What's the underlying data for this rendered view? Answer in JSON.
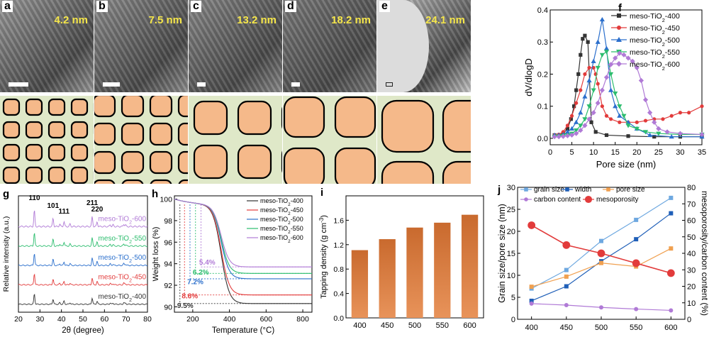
{
  "panels": {
    "tem": [
      {
        "label": "a",
        "scale": "4.2 nm",
        "tone": "#9a9a9a"
      },
      {
        "label": "b",
        "scale": "7.5 nm",
        "tone": "#8e8e8e"
      },
      {
        "label": "c",
        "scale": "13.2 nm",
        "tone": "#8a8a8a"
      },
      {
        "label": "d",
        "scale": "18.2 nm",
        "tone": "#7c7c7c"
      },
      {
        "label": "e",
        "scale": "24.1 nm",
        "tone": "#c8c8c8"
      }
    ],
    "schematic_colors": {
      "fill": "#f5b98a",
      "bg": "#dfe8c8",
      "edge": "#000000"
    },
    "f": "f",
    "g": "g",
    "h": "h",
    "i": "i",
    "j": "j"
  },
  "chart_data": [
    {
      "id": "f",
      "type": "line",
      "xlabel": "Pore size (nm)",
      "ylabel": "dV/dlogD",
      "xlim": [
        0,
        35
      ],
      "ylim": [
        -0.02,
        0.4
      ],
      "xticks": [
        0,
        5,
        10,
        15,
        20,
        25,
        30,
        35
      ],
      "yticks": [
        0.0,
        0.1,
        0.2,
        0.3,
        0.4
      ],
      "xtick_labels": [
        "0",
        "5",
        "10",
        "15",
        "20",
        "25",
        "30",
        "35"
      ],
      "ytick_labels": [
        "0.0",
        "0.1",
        "0.2",
        "0.3",
        "0.4"
      ],
      "legend_position": "top-right",
      "series": [
        {
          "name": "meso-TiO2-400",
          "legend_main": "meso-TiO",
          "legend_sub": "2",
          "legend_tail": "-400",
          "color": "#333333",
          "marker": "square",
          "points": [
            [
              1,
              0.01
            ],
            [
              2,
              0.01
            ],
            [
              3,
              0.015
            ],
            [
              4,
              0.03
            ],
            [
              4.8,
              0.06
            ],
            [
              5.5,
              0.1
            ],
            [
              6,
              0.15
            ],
            [
              6.5,
              0.2
            ],
            [
              7,
              0.26
            ],
            [
              7.5,
              0.31
            ],
            [
              8,
              0.32
            ],
            [
              8.7,
              0.3
            ],
            [
              9.5,
              0.05
            ],
            [
              10.5,
              0.02
            ],
            [
              13,
              0.01
            ],
            [
              18,
              0.007
            ],
            [
              24,
              0.005
            ],
            [
              30,
              0.005
            ],
            [
              35,
              0.005
            ]
          ]
        },
        {
          "name": "meso-TiO2-450",
          "legend_main": "meso-TiO",
          "legend_sub": "2",
          "legend_tail": "-450",
          "color": "#e23b3b",
          "marker": "circle",
          "points": [
            [
              1,
              0.01
            ],
            [
              2,
              0.012
            ],
            [
              3,
              0.02
            ],
            [
              4,
              0.04
            ],
            [
              5,
              0.07
            ],
            [
              6,
              0.11
            ],
            [
              7,
              0.15
            ],
            [
              8,
              0.2
            ],
            [
              9,
              0.22
            ],
            [
              10,
              0.22
            ],
            [
              10.5,
              0.2
            ],
            [
              11,
              0.17
            ],
            [
              12,
              0.1
            ],
            [
              13,
              0.07
            ],
            [
              14,
              0.06
            ],
            [
              16,
              0.05
            ],
            [
              18,
              0.05
            ],
            [
              20,
              0.05
            ],
            [
              22,
              0.055
            ],
            [
              24,
              0.06
            ],
            [
              26,
              0.06
            ],
            [
              28,
              0.07
            ],
            [
              30,
              0.08
            ],
            [
              32,
              0.08
            ],
            [
              35,
              0.1
            ]
          ]
        },
        {
          "name": "meso-TiO2-500",
          "legend_main": "meso-TiO",
          "legend_sub": "2",
          "legend_tail": "-500",
          "color": "#2b6fcc",
          "marker": "triangle",
          "points": [
            [
              1,
              0.01
            ],
            [
              2,
              0.01
            ],
            [
              3,
              0.012
            ],
            [
              4,
              0.02
            ],
            [
              5,
              0.03
            ],
            [
              6,
              0.05
            ],
            [
              7,
              0.08
            ],
            [
              8,
              0.13
            ],
            [
              9,
              0.18
            ],
            [
              10,
              0.24
            ],
            [
              11,
              0.3
            ],
            [
              12,
              0.37
            ],
            [
              13,
              0.28
            ],
            [
              14,
              0.15
            ],
            [
              15,
              0.1
            ],
            [
              16,
              0.07
            ],
            [
              18,
              0.05
            ],
            [
              20,
              0.03
            ],
            [
              23,
              0.01
            ],
            [
              28,
              0.005
            ],
            [
              35,
              0.005
            ]
          ]
        },
        {
          "name": "meso-TiO2-550",
          "legend_main": "meso-TiO",
          "legend_sub": "2",
          "legend_tail": "-550",
          "color": "#2cbd6e",
          "marker": "triangle-down",
          "points": [
            [
              1,
              0.005
            ],
            [
              2,
              0.006
            ],
            [
              3,
              0.008
            ],
            [
              4,
              0.01
            ],
            [
              5,
              0.015
            ],
            [
              6,
              0.025
            ],
            [
              7,
              0.04
            ],
            [
              8,
              0.06
            ],
            [
              9,
              0.1
            ],
            [
              10,
              0.15
            ],
            [
              11,
              0.22
            ],
            [
              12,
              0.26
            ],
            [
              13,
              0.27
            ],
            [
              14,
              0.2
            ],
            [
              15,
              0.14
            ],
            [
              16,
              0.1
            ],
            [
              17,
              0.07
            ],
            [
              18,
              0.04
            ],
            [
              20,
              0.03
            ],
            [
              22,
              0.02
            ],
            [
              25,
              0.015
            ],
            [
              30,
              0.012
            ],
            [
              35,
              0.012
            ]
          ]
        },
        {
          "name": "meso-TiO2-600",
          "legend_main": "meso-TiO",
          "legend_sub": "2",
          "legend_tail": "-600",
          "color": "#b07ad6",
          "marker": "diamond",
          "points": [
            [
              1,
              0.005
            ],
            [
              2,
              0.005
            ],
            [
              3,
              0.006
            ],
            [
              4,
              0.008
            ],
            [
              5,
              0.01
            ],
            [
              6,
              0.015
            ],
            [
              7,
              0.025
            ],
            [
              8,
              0.04
            ],
            [
              9,
              0.06
            ],
            [
              10,
              0.08
            ],
            [
              11,
              0.11
            ],
            [
              12,
              0.15
            ],
            [
              13,
              0.19
            ],
            [
              14,
              0.23
            ],
            [
              15,
              0.25
            ],
            [
              16,
              0.265
            ],
            [
              17,
              0.26
            ],
            [
              18,
              0.25
            ],
            [
              19,
              0.24
            ],
            [
              20,
              0.22
            ],
            [
              21,
              0.18
            ],
            [
              22,
              0.12
            ],
            [
              23,
              0.08
            ],
            [
              24,
              0.05
            ],
            [
              25,
              0.03
            ],
            [
              27,
              0.02
            ],
            [
              30,
              0.015
            ],
            [
              35,
              0.012
            ]
          ]
        }
      ]
    },
    {
      "id": "g",
      "type": "line",
      "xlabel": "2θ (degree)",
      "ylabel": "Relative intensity (a.u.)",
      "xlim": [
        20,
        80
      ],
      "ylim": [
        0,
        6
      ],
      "xticks": [
        20,
        30,
        40,
        50,
        60,
        70,
        80
      ],
      "xtick_labels": [
        "20",
        "30",
        "40",
        "50",
        "60",
        "70",
        "80"
      ],
      "peak_labels": [
        {
          "text": "110",
          "x": 27.4
        },
        {
          "text": "101",
          "x": 36.1
        },
        {
          "text": "111",
          "x": 41.2
        },
        {
          "text": "211",
          "x": 54.3
        },
        {
          "text": "220",
          "x": 56.6
        }
      ],
      "peaks": [
        [
          27.4,
          1.0
        ],
        [
          36.1,
          0.5
        ],
        [
          39.2,
          0.15
        ],
        [
          41.2,
          0.3
        ],
        [
          44.0,
          0.15
        ],
        [
          54.3,
          0.6
        ],
        [
          56.6,
          0.3
        ],
        [
          62.7,
          0.12
        ],
        [
          64.0,
          0.1
        ],
        [
          69.0,
          0.15
        ],
        [
          69.8,
          0.1
        ]
      ],
      "series": [
        {
          "name": "meso-TiO2-400",
          "label_main": "meso-TiO",
          "label_sub": "2",
          "label_tail": "-400",
          "color": "#333333",
          "offset": 0.4,
          "scale": 0.55
        },
        {
          "name": "meso-TiO2-450",
          "label_main": "meso-TiO",
          "label_sub": "2",
          "label_tail": "-450",
          "color": "#e23b3b",
          "offset": 1.4,
          "scale": 0.6
        },
        {
          "name": "meso-TiO2-500",
          "label_main": "meso-TiO",
          "label_sub": "2",
          "label_tail": "-500",
          "color": "#2b6fcc",
          "offset": 2.4,
          "scale": 0.65
        },
        {
          "name": "meso-TiO2-550",
          "label_main": "meso-TiO",
          "label_sub": "2",
          "label_tail": "-550",
          "color": "#2cbd6e",
          "offset": 3.4,
          "scale": 0.7
        },
        {
          "name": "meso-TiO2-600",
          "label_main": "meso-TiO",
          "label_sub": "2",
          "label_tail": "-600",
          "color": "#b07ad6",
          "offset": 4.4,
          "scale": 0.85
        }
      ]
    },
    {
      "id": "h",
      "type": "line",
      "xlabel": "Temperature (°C)",
      "ylabel": "Weight loss (%)",
      "xlim": [
        100,
        850
      ],
      "ylim": [
        89.5,
        100.3
      ],
      "xticks": [
        200,
        400,
        600,
        800
      ],
      "yticks": [
        90,
        92,
        94,
        96,
        98,
        100
      ],
      "xtick_labels": [
        "200",
        "400",
        "600",
        "800"
      ],
      "ytick_labels": [
        "90",
        "92",
        "94",
        "96",
        "98",
        "100"
      ],
      "legend_position": "top-right",
      "annotations": [
        {
          "text": "9.5%",
          "color": "#333333",
          "x": 115,
          "y": 89.9
        },
        {
          "text": "8.6%",
          "color": "#e23b3b",
          "x": 140,
          "y": 90.8
        },
        {
          "text": "7.2%",
          "color": "#2b6fcc",
          "x": 170,
          "y": 92.1
        },
        {
          "text": "6.2%",
          "color": "#2cbd6e",
          "x": 200,
          "y": 93.0
        },
        {
          "text": "5.4%",
          "color": "#b07ad6",
          "x": 235,
          "y": 93.9
        }
      ],
      "series": [
        {
          "name": "meso-TiO2-400",
          "legend_main": "meso-TiO",
          "legend_sub": "2",
          "legend_tail": "-400",
          "color": "#333333",
          "start_x": 130,
          "final": 90.3
        },
        {
          "name": "meso-TiO2-450",
          "legend_main": "meso-TiO",
          "legend_sub": "2",
          "legend_tail": "-450",
          "color": "#e23b3b",
          "start_x": 155,
          "final": 91.1
        },
        {
          "name": "meso-TiO2-500",
          "legend_main": "meso-TiO",
          "legend_sub": "2",
          "legend_tail": "-500",
          "color": "#2b6fcc",
          "start_x": 185,
          "final": 92.6
        },
        {
          "name": "meso-TiO2-550",
          "legend_main": "meso-TiO",
          "legend_sub": "2",
          "legend_tail": "-550",
          "color": "#2cbd6e",
          "start_x": 215,
          "final": 93.1
        },
        {
          "name": "meso-TiO2-600",
          "legend_main": "meso-TiO",
          "legend_sub": "2",
          "legend_tail": "-600",
          "color": "#b07ad6",
          "start_x": 245,
          "final": 93.7
        }
      ]
    },
    {
      "id": "i",
      "type": "bar",
      "ylabel_main": "Tapping density (g cm",
      "ylabel_sup": "-3",
      "ylabel_tail": ")",
      "categories": [
        "400",
        "450",
        "500",
        "550",
        "600"
      ],
      "values": [
        1.11,
        1.29,
        1.48,
        1.56,
        1.69
      ],
      "ylim": [
        0,
        2.0
      ],
      "yticks": [
        0,
        0.4,
        0.8,
        1.2,
        1.6
      ],
      "ytick_labels": [
        "0.0",
        "0.4",
        "0.8",
        "1.2",
        "1.6"
      ],
      "bar_color": "#e8935a"
    },
    {
      "id": "j",
      "type": "line",
      "ylabel_left": "Grain size/pore size (nm)",
      "ylabel_right": "mesoporosity/carbon content (%)",
      "categories": [
        "400",
        "450",
        "500",
        "550",
        "600"
      ],
      "x": [
        400,
        450,
        500,
        550,
        600
      ],
      "ylim_left": [
        0,
        30
      ],
      "ylim_right": [
        0,
        80
      ],
      "yticks_left": [
        0,
        5,
        10,
        15,
        20,
        25,
        30
      ],
      "yticks_right": [
        0,
        10,
        20,
        30,
        40,
        50,
        60,
        70,
        80
      ],
      "ytick_labels_left": [
        "0",
        "5",
        "10",
        "15",
        "20",
        "25",
        "30"
      ],
      "ytick_labels_right": [
        "0",
        "10",
        "20",
        "30",
        "40",
        "50",
        "60",
        "70",
        "80"
      ],
      "legend_position": "top",
      "series": [
        {
          "name": "grain size",
          "color": "#6ea8e0",
          "axis": "left",
          "marker": "square",
          "values": [
            7.0,
            11.2,
            17.8,
            22.6,
            27.6
          ]
        },
        {
          "name": "width",
          "color": "#1f5fb8",
          "axis": "left",
          "marker": "square",
          "values": [
            4.2,
            7.5,
            13.2,
            18.2,
            24.1
          ]
        },
        {
          "name": "pore size",
          "color": "#f0a050",
          "axis": "left",
          "marker": "square",
          "values": [
            7.4,
            9.7,
            12.8,
            12.0,
            16.1
          ]
        },
        {
          "name": "carbon content",
          "color": "#b07ad6",
          "axis": "right",
          "marker": "circle",
          "values": [
            9.5,
            8.6,
            7.2,
            6.2,
            5.4
          ]
        },
        {
          "name": "mesoporosity",
          "color": "#e23b3b",
          "axis": "right",
          "marker": "bigcircle",
          "values": [
            57,
            45,
            40,
            34,
            28
          ]
        }
      ]
    }
  ]
}
